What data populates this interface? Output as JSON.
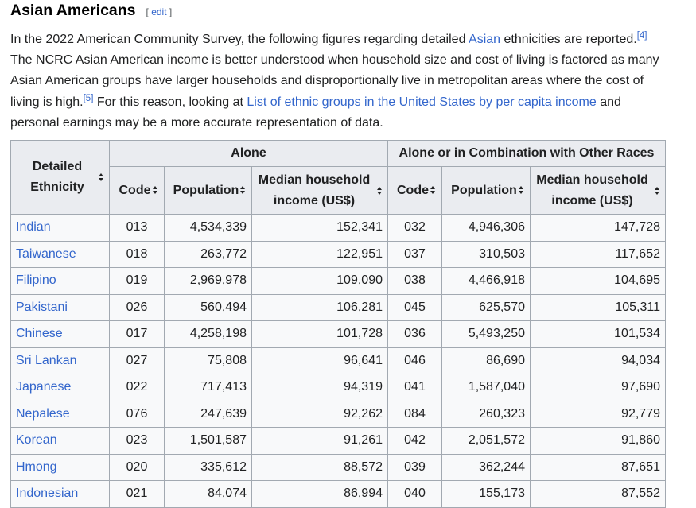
{
  "heading": {
    "title": "Asian Americans",
    "edit_open": "[",
    "edit_label": "edit",
    "edit_close": "]"
  },
  "intro": {
    "p1_a": "In the 2022 American Community Survey, the following figures regarding detailed ",
    "p1_link_asian": "Asian",
    "p1_b": " ethnicities are reported.",
    "ref4": "[4]",
    "p1_c": " The NCRC Asian American income is better understood when household size and cost of living is factored as many Asian American groups have larger households and disproportionally live in metropolitan areas where the cost of living is high.",
    "ref5": "[5]",
    "p1_d": " For this reason, looking at ",
    "p1_link_list": "List of ethnic groups in the United States by per capita income",
    "p1_e": " and personal earnings may be a more accurate representation of data."
  },
  "table": {
    "col_ethnicity": "Detailed Ethnicity",
    "group_alone": "Alone",
    "group_combo": "Alone or in Combination with Other Races",
    "col_code": "Code",
    "col_population": "Population",
    "col_income": "Median household income (US$)",
    "rows": [
      {
        "ethnicity": "Indian",
        "code": "013",
        "pop": "4,534,339",
        "income": "152,341",
        "code2": "032",
        "pop2": "4,946,306",
        "income2": "147,728"
      },
      {
        "ethnicity": "Taiwanese",
        "code": "018",
        "pop": "263,772",
        "income": "122,951",
        "code2": "037",
        "pop2": "310,503",
        "income2": "117,652"
      },
      {
        "ethnicity": "Filipino",
        "code": "019",
        "pop": "2,969,978",
        "income": "109,090",
        "code2": "038",
        "pop2": "4,466,918",
        "income2": "104,695"
      },
      {
        "ethnicity": "Pakistani",
        "code": "026",
        "pop": "560,494",
        "income": "106,281",
        "code2": "045",
        "pop2": "625,570",
        "income2": "105,311"
      },
      {
        "ethnicity": "Chinese",
        "code": "017",
        "pop": "4,258,198",
        "income": "101,728",
        "code2": "036",
        "pop2": "5,493,250",
        "income2": "101,534"
      },
      {
        "ethnicity": "Sri Lankan",
        "code": "027",
        "pop": "75,808",
        "income": "96,641",
        "code2": "046",
        "pop2": "86,690",
        "income2": "94,034"
      },
      {
        "ethnicity": "Japanese",
        "code": "022",
        "pop": "717,413",
        "income": "94,319",
        "code2": "041",
        "pop2": "1,587,040",
        "income2": "97,690"
      },
      {
        "ethnicity": "Nepalese",
        "code": "076",
        "pop": "247,639",
        "income": "92,262",
        "code2": "084",
        "pop2": "260,323",
        "income2": "92,779"
      },
      {
        "ethnicity": "Korean",
        "code": "023",
        "pop": "1,501,587",
        "income": "91,261",
        "code2": "042",
        "pop2": "2,051,572",
        "income2": "91,860"
      },
      {
        "ethnicity": "Hmong",
        "code": "020",
        "pop": "335,612",
        "income": "88,572",
        "code2": "039",
        "pop2": "362,244",
        "income2": "87,651"
      },
      {
        "ethnicity": "Indonesian",
        "code": "021",
        "pop": "84,074",
        "income": "86,994",
        "code2": "040",
        "pop2": "155,173",
        "income2": "87,552"
      }
    ]
  },
  "colors": {
    "link": "#3366cc",
    "header_bg": "#eaecf0",
    "cell_bg": "#f8f9fa",
    "border": "#a2a9b1"
  }
}
